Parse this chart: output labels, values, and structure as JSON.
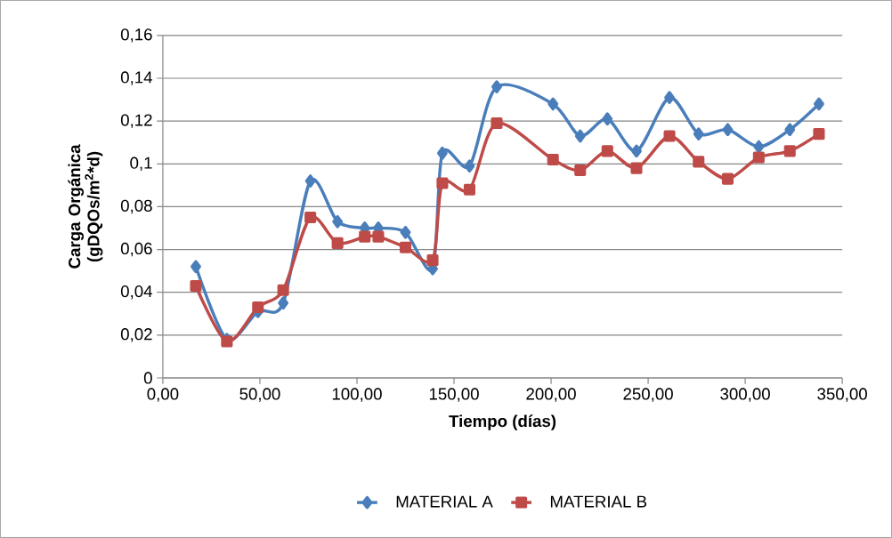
{
  "chart_data": {
    "type": "line",
    "xlabel": "Tiempo (días)",
    "ylabel": "Carga Orgánica (gDQOs/m$^{2}$*d)",
    "xlim": [
      0,
      350
    ],
    "ylim": [
      0,
      0.16
    ],
    "xticks": [
      {
        "value": 0,
        "label": "0,00"
      },
      {
        "value": 50,
        "label": "50,00"
      },
      {
        "value": 100,
        "label": "100,00"
      },
      {
        "value": 150,
        "label": "150,00"
      },
      {
        "value": 200,
        "label": "200,00"
      },
      {
        "value": 250,
        "label": "250,00"
      },
      {
        "value": 300,
        "label": "300,00"
      },
      {
        "value": 350,
        "label": "350,00"
      }
    ],
    "yticks": [
      0,
      {
        "value": 0.02,
        "label": "0,02"
      },
      {
        "value": 0.04,
        "label": "0,04"
      },
      {
        "value": 0.06,
        "label": "0,06"
      },
      {
        "value": 0.08,
        "label": "0,08"
      },
      {
        "value": 0.1,
        "label": "0,1"
      },
      {
        "value": 0.12,
        "label": "0,12"
      },
      {
        "value": 0.14,
        "label": "0,14"
      },
      {
        "value": 0.16,
        "label": "0,16"
      }
    ],
    "grid": "y",
    "legend": "bottom",
    "line_style": "solid",
    "series": [
      {
        "name": "MATERIAL A",
        "color": "#4a7ebb",
        "marker": "diamond",
        "x": [
          17,
          33,
          49,
          62,
          76,
          90,
          104,
          111,
          125,
          139,
          144,
          158,
          172,
          201,
          215,
          229,
          244,
          261,
          276,
          291,
          307,
          323,
          338
        ],
        "values": [
          0.052,
          0.018,
          0.031,
          0.035,
          0.092,
          0.073,
          0.07,
          0.07,
          0.068,
          0.051,
          0.105,
          0.099,
          0.136,
          0.128,
          0.113,
          0.121,
          0.106,
          0.131,
          0.114,
          0.116,
          0.108,
          0.116,
          0.128
        ]
      },
      {
        "name": "MATERIAL B",
        "color": "#be4b48",
        "marker": "square",
        "x": [
          17,
          33,
          49,
          62,
          76,
          90,
          104,
          111,
          125,
          139,
          144,
          158,
          172,
          201,
          215,
          229,
          244,
          261,
          276,
          291,
          307,
          323,
          338
        ],
        "values": [
          0.043,
          0.017,
          0.033,
          0.041,
          0.075,
          0.063,
          0.066,
          0.066,
          0.061,
          0.055,
          0.091,
          0.088,
          0.119,
          0.102,
          0.097,
          0.106,
          0.098,
          0.113,
          0.101,
          0.093,
          0.103,
          0.106,
          0.114
        ]
      }
    ]
  }
}
